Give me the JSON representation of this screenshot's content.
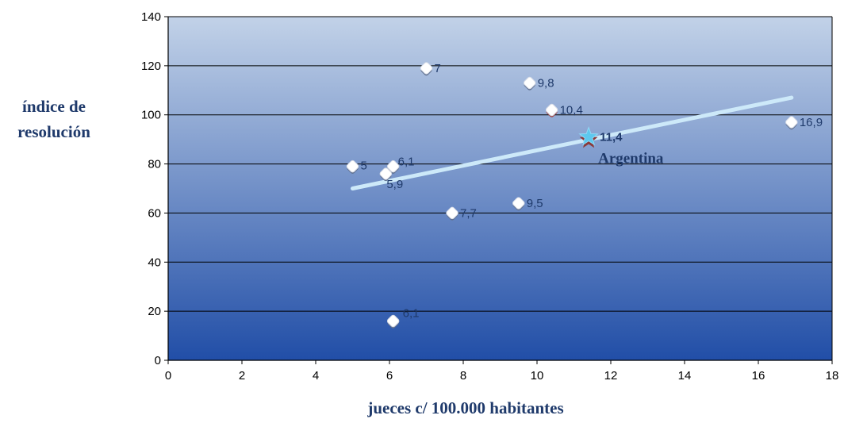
{
  "chart_data": {
    "type": "scatter",
    "xlabel": "jueces c/ 100.000 habitantes",
    "ylabel_lines": [
      "índice de",
      "resolución"
    ],
    "xlim": [
      0,
      18
    ],
    "ylim": [
      0,
      140
    ],
    "x_ticks": [
      "0",
      "2",
      "4",
      "6",
      "8",
      "10",
      "12",
      "14",
      "16",
      "18"
    ],
    "y_ticks": [
      "0",
      "20",
      "40",
      "60",
      "80",
      "100",
      "120",
      "140"
    ],
    "grid": "horizontal",
    "points": [
      {
        "x": 7.0,
        "y": 119,
        "label": "7"
      },
      {
        "x": 9.8,
        "y": 113,
        "label": "9,8"
      },
      {
        "x": 10.4,
        "y": 102,
        "label": "10,4"
      },
      {
        "x": 16.9,
        "y": 97,
        "label": "16,9"
      },
      {
        "x": 5.0,
        "y": 79,
        "label": "5"
      },
      {
        "x": 6.1,
        "y": 79,
        "label": "6,1"
      },
      {
        "x": 5.9,
        "y": 76,
        "label": "5,9"
      },
      {
        "x": 7.7,
        "y": 60,
        "label": "7,7"
      },
      {
        "x": 9.5,
        "y": 64,
        "label": "9,5"
      },
      {
        "x": 6.1,
        "y": 16,
        "label": "6,1"
      }
    ],
    "highlight": {
      "x": 11.4,
      "y": 91,
      "label": "11,4",
      "name": "Argentina",
      "marker": "star",
      "color": "#5ec8ee"
    },
    "trendline": {
      "x": [
        5.0,
        16.9
      ],
      "y": [
        70,
        107
      ],
      "color": "#cde9f9"
    },
    "colors": {
      "plot_top": "#c2d2e8",
      "plot_bottom": "#214ea7",
      "label_text": "#1f3a6b"
    }
  }
}
